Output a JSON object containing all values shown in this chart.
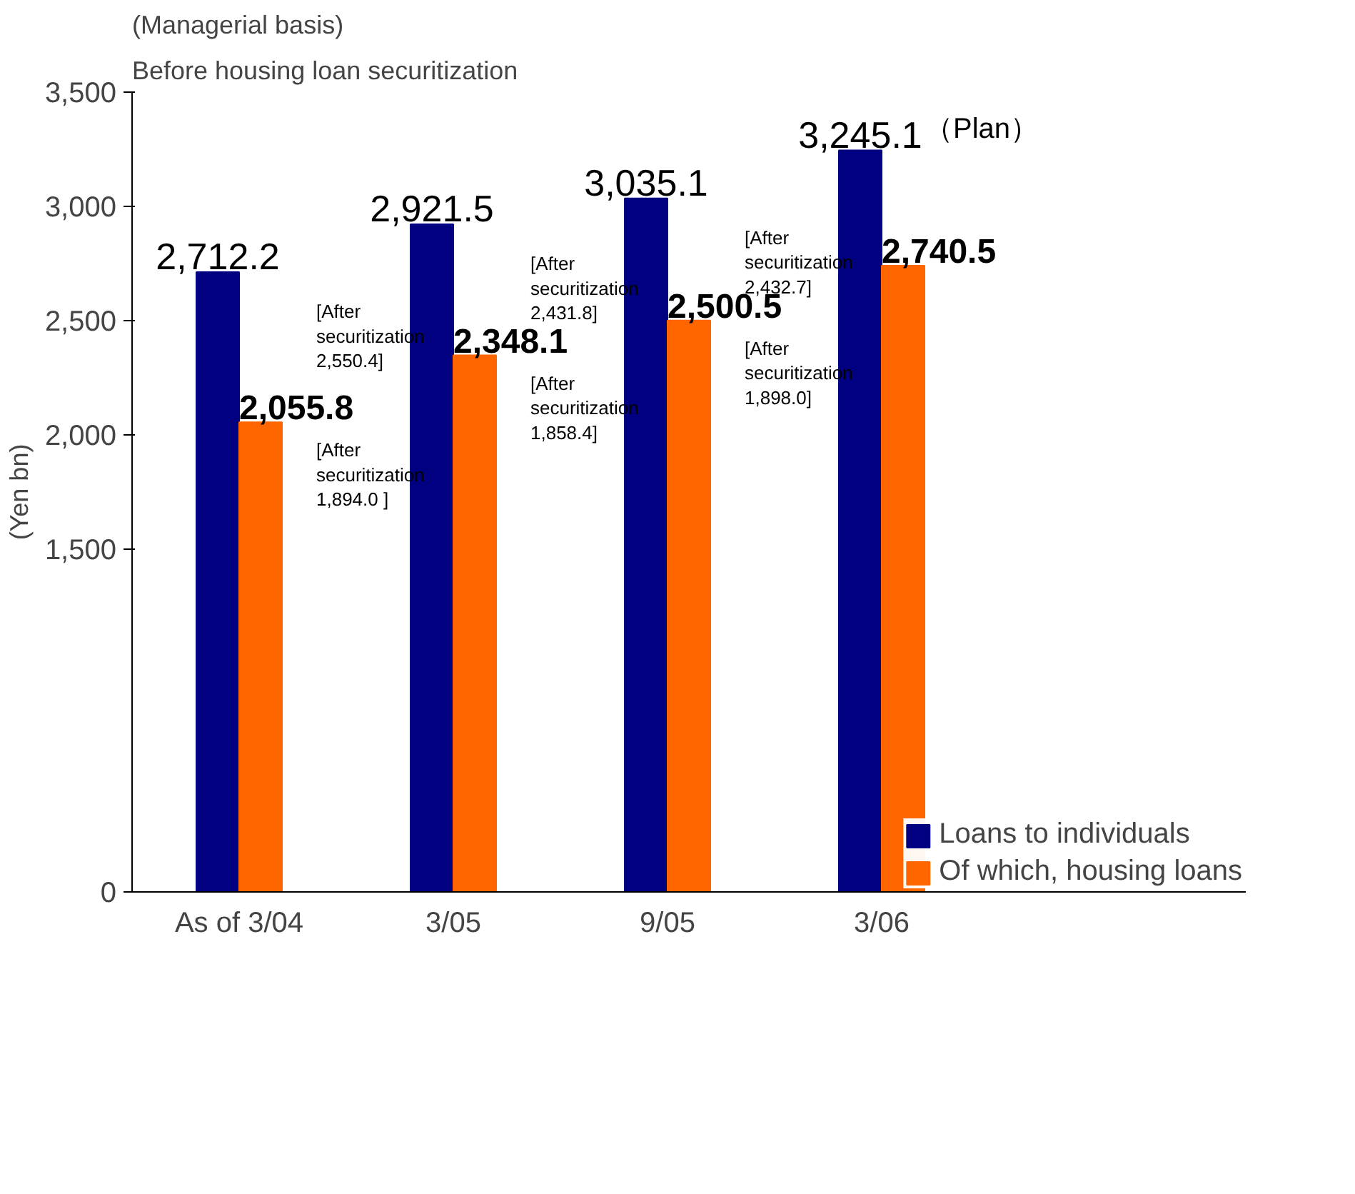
{
  "chart_data": {
    "type": "bar",
    "title": "(Managerial basis)",
    "subtitle": "Before housing loan securitization",
    "ylabel": "(Yen bn)",
    "categories": [
      "As of 3/04",
      "3/05",
      "9/05",
      "3/06"
    ],
    "series": [
      {
        "name": "Loans to individuals",
        "color": "#000080",
        "values": [
          2712.2,
          2921.5,
          3035.1,
          3245.1
        ],
        "value_labels": [
          "2,712.2",
          "2,921.5",
          "3,035.1",
          "3,245.1"
        ]
      },
      {
        "name": "Of which, housing loans",
        "color": "#ff6600",
        "values": [
          2055.8,
          2348.1,
          2500.5,
          2740.5
        ],
        "value_labels": [
          "2,055.8",
          "2,348.1",
          "2,500.5",
          "2,740.5"
        ]
      }
    ],
    "ylim": [
      0,
      3500
    ],
    "yticks": [
      0,
      {
        "value": 1500,
        "label": "1,500"
      },
      {
        "value": 2000,
        "label": "2,000"
      },
      {
        "value": 2500,
        "label": "2,500"
      },
      {
        "value": 3000,
        "label": "3,000"
      },
      {
        "value": 3500,
        "label": "3,500"
      }
    ],
    "annotations": [
      "[After\nsecuritization\n2,550.4]",
      "[After\nsecuritization\n1,894.0 ]",
      "[After\nsecuritization\n2,431.8]",
      "[After\nsecuritization\n1,858.4]",
      "[After\nsecuritization\n2,432.7]",
      "[After\nsecuritization\n1,898.0]",
      "（Plan）"
    ],
    "grid": false,
    "legend": "bottom right"
  }
}
